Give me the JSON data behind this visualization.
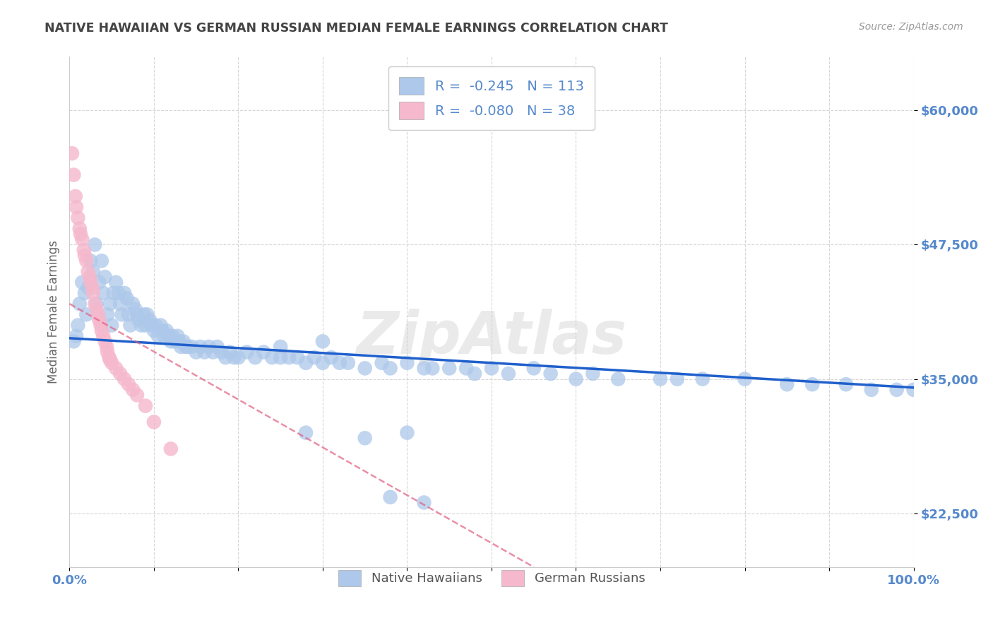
{
  "title": "NATIVE HAWAIIAN VS GERMAN RUSSIAN MEDIAN FEMALE EARNINGS CORRELATION CHART",
  "source": "Source: ZipAtlas.com",
  "ylabel": "Median Female Earnings",
  "xlim": [
    0,
    1.0
  ],
  "ylim": [
    17500,
    65000
  ],
  "yticks": [
    22500,
    35000,
    47500,
    60000
  ],
  "ytick_labels": [
    "$22,500",
    "$35,000",
    "$47,500",
    "$60,000"
  ],
  "xtick_labels": [
    "0.0%",
    "",
    "",
    "",
    "",
    "",
    "",
    "",
    "",
    "",
    "100.0%"
  ],
  "legend_labels": [
    "Native Hawaiians",
    "German Russians"
  ],
  "r_native": -0.245,
  "n_native": 113,
  "r_german": -0.08,
  "n_german": 38,
  "blue_color": "#adc8ea",
  "pink_color": "#f5b8cc",
  "blue_line_color": "#2060cc",
  "pink_line_color": "#e06080",
  "background_color": "#ffffff",
  "grid_color": "#cccccc",
  "title_color": "#444444",
  "axis_color": "#5588cc",
  "watermark": "ZipAtlas",
  "native_x": [
    0.005,
    0.008,
    0.01,
    0.012,
    0.015,
    0.018,
    0.02,
    0.022,
    0.025,
    0.028,
    0.03,
    0.032,
    0.035,
    0.038,
    0.04,
    0.042,
    0.045,
    0.048,
    0.05,
    0.052,
    0.055,
    0.058,
    0.06,
    0.062,
    0.065,
    0.068,
    0.07,
    0.072,
    0.075,
    0.078,
    0.08,
    0.082,
    0.085,
    0.088,
    0.09,
    0.092,
    0.095,
    0.098,
    0.1,
    0.102,
    0.105,
    0.108,
    0.11,
    0.112,
    0.115,
    0.118,
    0.12,
    0.122,
    0.125,
    0.128,
    0.13,
    0.132,
    0.135,
    0.138,
    0.14,
    0.145,
    0.15,
    0.155,
    0.16,
    0.165,
    0.17,
    0.175,
    0.18,
    0.185,
    0.19,
    0.195,
    0.2,
    0.21,
    0.22,
    0.23,
    0.24,
    0.25,
    0.26,
    0.27,
    0.28,
    0.29,
    0.3,
    0.31,
    0.32,
    0.33,
    0.35,
    0.37,
    0.38,
    0.4,
    0.42,
    0.43,
    0.45,
    0.47,
    0.48,
    0.5,
    0.52,
    0.55,
    0.57,
    0.6,
    0.62,
    0.65,
    0.7,
    0.72,
    0.75,
    0.8,
    0.85,
    0.88,
    0.92,
    0.95,
    0.98,
    1.0,
    0.4,
    0.35,
    0.38,
    0.42,
    0.25,
    0.28,
    0.3
  ],
  "native_y": [
    38500,
    39000,
    40000,
    42000,
    44000,
    43000,
    41000,
    43500,
    46000,
    45000,
    47500,
    42000,
    44000,
    46000,
    43000,
    44500,
    41000,
    42000,
    40000,
    43000,
    44000,
    43000,
    42000,
    41000,
    43000,
    42500,
    41000,
    40000,
    42000,
    41500,
    41000,
    40500,
    40000,
    41000,
    40000,
    41000,
    40500,
    40000,
    39500,
    40000,
    39000,
    40000,
    39500,
    39000,
    39500,
    39000,
    38500,
    39000,
    38500,
    39000,
    38500,
    38000,
    38500,
    38000,
    38000,
    38000,
    37500,
    38000,
    37500,
    38000,
    37500,
    38000,
    37500,
    37000,
    37500,
    37000,
    37000,
    37500,
    37000,
    37500,
    37000,
    37000,
    37000,
    37000,
    36500,
    37000,
    36500,
    37000,
    36500,
    36500,
    36000,
    36500,
    36000,
    36500,
    36000,
    36000,
    36000,
    36000,
    35500,
    36000,
    35500,
    36000,
    35500,
    35000,
    35500,
    35000,
    35000,
    35000,
    35000,
    35000,
    34500,
    34500,
    34500,
    34000,
    34000,
    34000,
    30000,
    29500,
    24000,
    23500,
    38000,
    30000,
    38500
  ],
  "german_x": [
    0.003,
    0.005,
    0.007,
    0.008,
    0.01,
    0.012,
    0.013,
    0.015,
    0.017,
    0.018,
    0.02,
    0.022,
    0.024,
    0.025,
    0.027,
    0.028,
    0.03,
    0.032,
    0.034,
    0.035,
    0.037,
    0.038,
    0.04,
    0.042,
    0.044,
    0.045,
    0.047,
    0.048,
    0.05,
    0.055,
    0.06,
    0.065,
    0.07,
    0.075,
    0.08,
    0.09,
    0.1,
    0.12
  ],
  "german_y": [
    56000,
    54000,
    52000,
    51000,
    50000,
    49000,
    48500,
    48000,
    47000,
    46500,
    46000,
    45000,
    44500,
    44000,
    43500,
    43000,
    42000,
    41500,
    41000,
    40500,
    40000,
    39500,
    39000,
    38500,
    38000,
    37500,
    37000,
    36800,
    36500,
    36000,
    35500,
    35000,
    34500,
    34000,
    33500,
    32500,
    31000,
    28500
  ],
  "blue_trend": [
    38800,
    34200
  ],
  "pink_trend_x": [
    0.0,
    0.55
  ],
  "pink_trend_y": [
    42000,
    17500
  ]
}
